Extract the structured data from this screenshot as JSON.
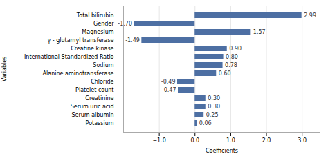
{
  "chart_data": {
    "type": "bar",
    "orientation": "horizontal",
    "xlabel": "Coefficients",
    "ylabel": "Variables",
    "categories": [
      "Total bilirubin",
      "Gender",
      "Magnesium",
      "γ - glutamyl transferase",
      "Creatine kinase",
      "International Standardized Ratio",
      "Sodium",
      "Alanine aminotransferase",
      "Chloride",
      "Platelet count",
      "Creatinine",
      "Serum uric acid",
      "Serum albumin",
      "Potassium"
    ],
    "values": [
      2.99,
      -1.7,
      1.57,
      -1.49,
      0.9,
      0.8,
      0.78,
      0.6,
      -0.49,
      -0.47,
      0.3,
      0.3,
      0.25,
      0.06
    ],
    "value_labels": [
      "2.99",
      "-1.70",
      "1.57",
      "-1.49",
      "0.90",
      "0.80",
      "0.78",
      "0.60",
      "-0.49",
      "-0.47",
      "0.30",
      "0.30",
      "0.25",
      "0.06"
    ],
    "color": "#4d6fa3",
    "xlim": [
      -2,
      3.5
    ],
    "xticks": [
      -1,
      0,
      1,
      2,
      3
    ],
    "grid": true,
    "data_labels": true
  }
}
